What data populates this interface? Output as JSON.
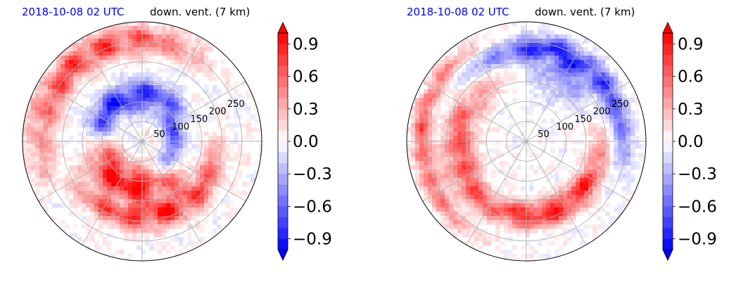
{
  "chart_data": [
    {
      "type": "heatmap",
      "projection": "polar",
      "title_date": "2018-10-08 02 UTC",
      "title_variable": "down. vent. (7 km)",
      "radial_ticks": [
        50,
        100,
        150,
        200,
        250
      ],
      "radial_range": [
        0,
        300
      ],
      "grid": true,
      "colorbar": {
        "ticks": [
          "0.9",
          "0.6",
          "0.3",
          "0.0",
          "−0.3",
          "−0.6",
          "−0.9"
        ],
        "tick_values": [
          0.9,
          0.6,
          0.3,
          0.0,
          -0.3,
          -0.6,
          -0.9
        ],
        "range": [
          -1.0,
          1.0
        ],
        "extend": "both",
        "colormap": "bwr",
        "placement": "right"
      },
      "colors": {
        "positive": "#ff0000",
        "negative": "#0000ff",
        "zero": "#ffffff"
      }
    },
    {
      "type": "heatmap",
      "projection": "polar",
      "title_date": "2018-10-08 02 UTC",
      "title_variable": "down. vent. (7 km)",
      "radial_ticks": [
        50,
        100,
        150,
        200,
        250
      ],
      "radial_range": [
        0,
        300
      ],
      "grid": true,
      "colorbar": {
        "ticks": [
          "0.9",
          "0.6",
          "0.3",
          "0.0",
          "−0.3",
          "−0.6",
          "−0.9"
        ],
        "tick_values": [
          0.9,
          0.6,
          0.3,
          0.0,
          -0.3,
          -0.6,
          -0.9
        ],
        "range": [
          -1.0,
          1.0
        ],
        "extend": "both",
        "colormap": "bwr",
        "placement": "right"
      },
      "colors": {
        "positive": "#ff0000",
        "negative": "#0000ff",
        "zero": "#ffffff"
      }
    }
  ]
}
